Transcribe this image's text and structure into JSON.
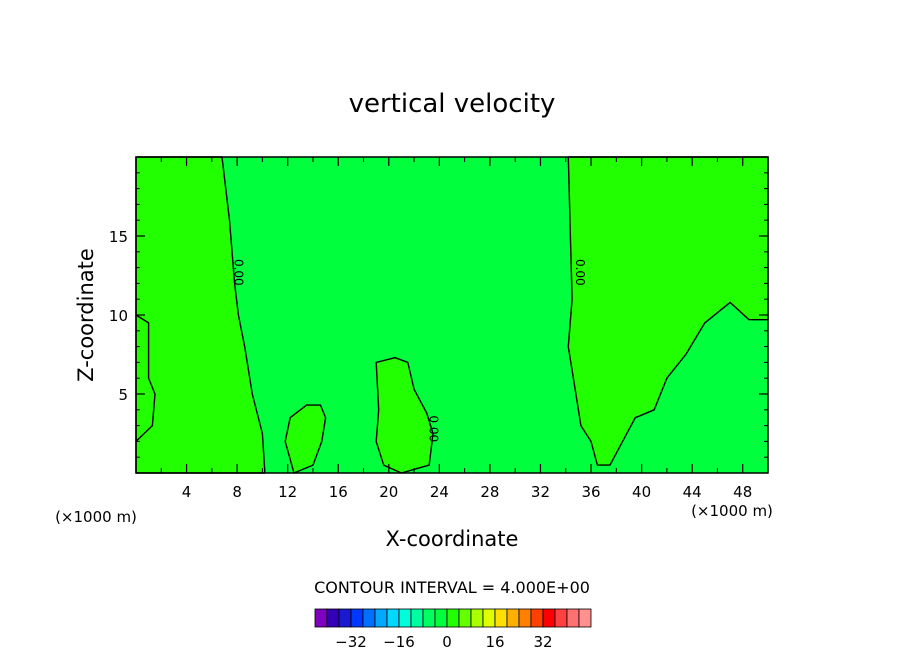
{
  "chart_data": {
    "type": "heatmap",
    "title": "vertical velocity",
    "xlabel": "X-coordinate",
    "ylabel": "Z-coordinate",
    "x_unit": "(×1000 m)",
    "x_unit_right": "(×1000 m)",
    "xlim": [
      0,
      50
    ],
    "ylim": [
      0,
      20
    ],
    "x_ticks": [
      4,
      8,
      12,
      16,
      20,
      24,
      28,
      32,
      36,
      40,
      44,
      48
    ],
    "y_ticks": [
      5,
      10,
      15
    ],
    "contour_label": "0.00",
    "regions": [
      {
        "name": "positive",
        "color": "#22ff00",
        "polygons": [
          [
            [
              0,
              20
            ],
            [
              6.8,
              20
            ],
            [
              7.4,
              16
            ],
            [
              7.8,
              12
            ],
            [
              8.1,
              10
            ],
            [
              8.6,
              8
            ],
            [
              9.2,
              5
            ],
            [
              10,
              2.5
            ],
            [
              10.2,
              0
            ],
            [
              0,
              0
            ],
            [
              0,
              10
            ],
            [
              1,
              9.5
            ],
            [
              1,
              6
            ],
            [
              1.5,
              5
            ],
            [
              1.3,
              3
            ],
            [
              0,
              2
            ],
            [
              0,
              20
            ]
          ],
          [
            [
              34.2,
              20
            ],
            [
              50,
              20
            ],
            [
              50,
              9.7
            ],
            [
              48.5,
              9.7
            ],
            [
              47,
              10.8
            ],
            [
              45,
              9.5
            ],
            [
              43.5,
              7.5
            ],
            [
              42,
              6
            ],
            [
              41,
              4
            ],
            [
              39.5,
              3.5
            ],
            [
              38.5,
              2
            ],
            [
              37.5,
              0.5
            ],
            [
              36.5,
              0.5
            ],
            [
              36,
              2
            ],
            [
              35.2,
              3
            ],
            [
              34.8,
              5
            ],
            [
              34.2,
              8
            ],
            [
              34.5,
              11
            ],
            [
              34.4,
              14
            ],
            [
              34.2,
              20
            ]
          ],
          [
            [
              19,
              7
            ],
            [
              20.5,
              7.3
            ],
            [
              21.5,
              7
            ],
            [
              22,
              5.3
            ],
            [
              23,
              3.8
            ],
            [
              23.5,
              2.5
            ],
            [
              23.2,
              0.5
            ],
            [
              21,
              0
            ],
            [
              19.6,
              0.5
            ],
            [
              19,
              2
            ],
            [
              19.2,
              4
            ],
            [
              19,
              7
            ]
          ],
          [
            [
              11.8,
              2
            ],
            [
              12.2,
              3.5
            ],
            [
              13.5,
              4.3
            ],
            [
              14.6,
              4.3
            ],
            [
              15,
              3.5
            ],
            [
              14.7,
              2
            ],
            [
              14,
              0.5
            ],
            [
              12.5,
              0
            ],
            [
              11.8,
              2
            ]
          ]
        ]
      },
      {
        "name": "near-zero",
        "color": "#00ff3c",
        "background": true
      }
    ]
  },
  "colorbar": {
    "caption": "CONTOUR INTERVAL = 4.000E+00",
    "colors": [
      "#8000c0",
      "#3300b8",
      "#1a1ad0",
      "#0038ff",
      "#0070ff",
      "#00a8ff",
      "#00d8ff",
      "#00ffd8",
      "#00ffa0",
      "#00ff60",
      "#00ff3c",
      "#22ff00",
      "#66ff00",
      "#aaff00",
      "#e0ff00",
      "#ffe000",
      "#ffb000",
      "#ff8000",
      "#ff4000",
      "#ff0000",
      "#ff4040",
      "#ff7070",
      "#ff9090"
    ],
    "tick_labels": [
      "-32",
      "-16",
      "0",
      "16",
      "32"
    ]
  }
}
